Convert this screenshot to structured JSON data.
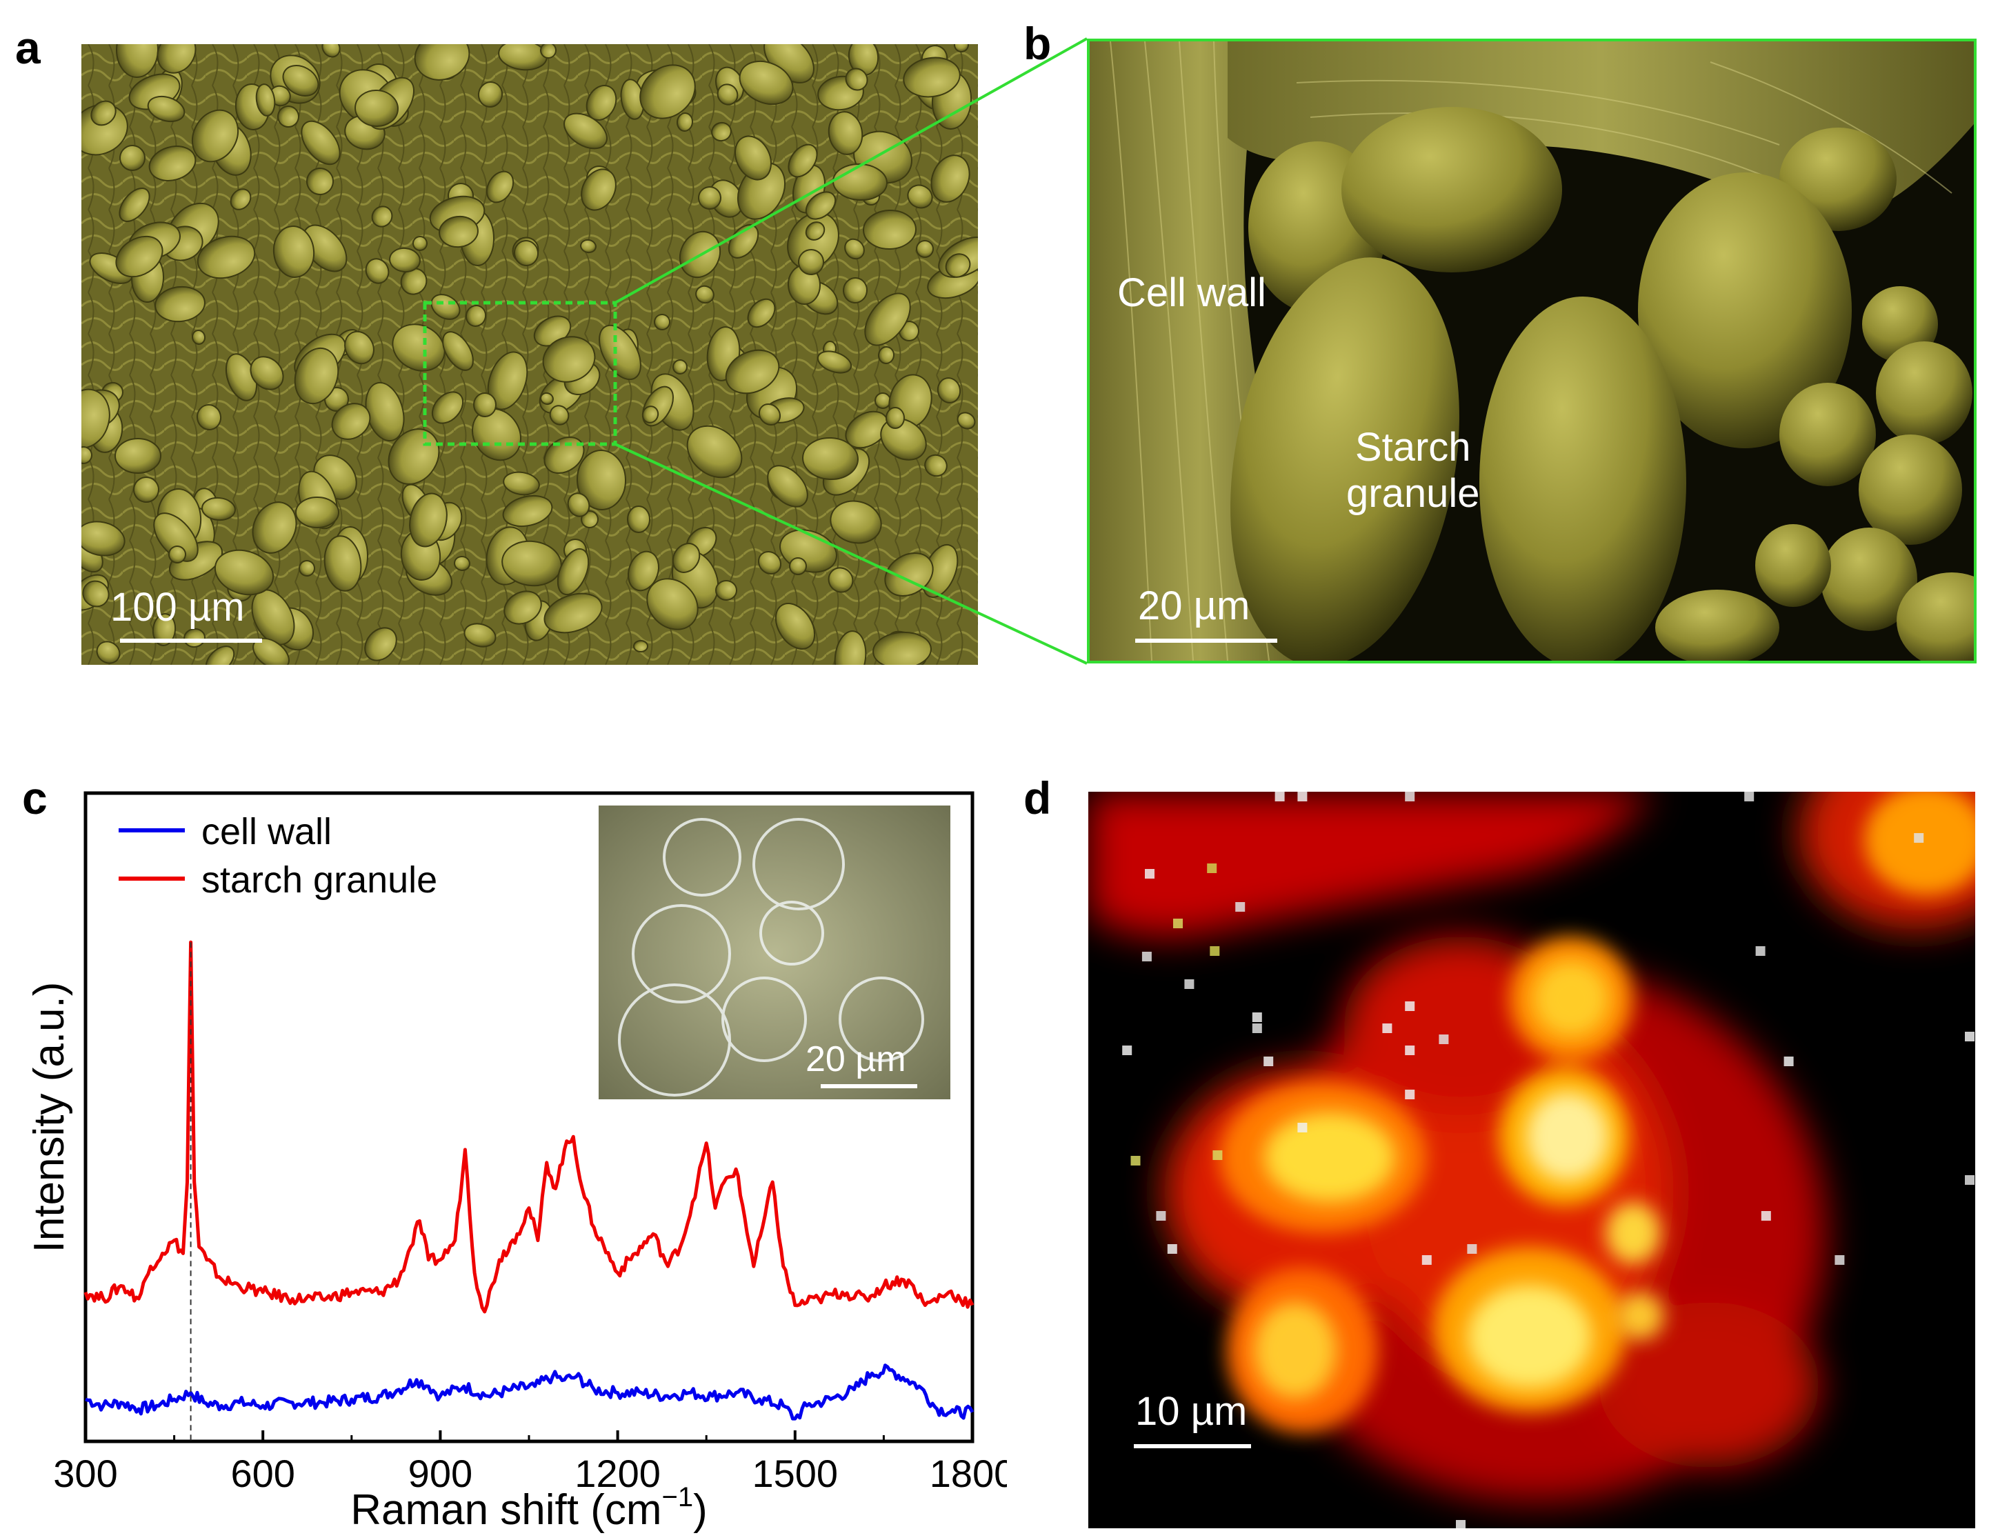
{
  "figure": {
    "panel_letters": [
      "a",
      "b",
      "c",
      "d"
    ],
    "panel_a": {
      "scale_bar_label": "100 µm",
      "description_colors": {
        "tint": "#8a8a2a",
        "zoom_box": "#33dd33"
      }
    },
    "panel_b": {
      "labels": {
        "cell_wall": "Cell wall",
        "starch_line1": "Starch",
        "starch_line2": "granule"
      },
      "scale_bar_label": "20 µm"
    },
    "panel_c": {
      "legend": [
        "cell wall",
        "starch granule"
      ],
      "inset_scale_label": "20 µm"
    },
    "panel_d": {
      "scale_bar_label": "10 µm",
      "colormap": [
        "#000000",
        "#cc0000",
        "#ff4000",
        "#ffcc00",
        "#ffffff"
      ]
    }
  },
  "chart_data": {
    "type": "line",
    "xlabel": "Raman shift (cm",
    "xlabel_sup": "−1",
    "xlabel_close": ")",
    "ylabel": "Intensity (a.u.)",
    "xlim": [
      300,
      1800
    ],
    "ylim": [
      0,
      100
    ],
    "xticks": [
      "300",
      "600",
      "900",
      "1200",
      "1500",
      "1800"
    ],
    "xtick_values": [
      300,
      600,
      900,
      1200,
      1500,
      1800
    ],
    "marker_line_x": 478,
    "series": [
      {
        "name": "cell wall",
        "color": "#0000ee",
        "x": [
          300,
          330,
          360,
          390,
          420,
          450,
          478,
          500,
          530,
          560,
          600,
          650,
          700,
          750,
          800,
          830,
          860,
          880,
          900,
          940,
          980,
          1020,
          1060,
          1090,
          1110,
          1130,
          1160,
          1200,
          1240,
          1280,
          1320,
          1360,
          1400,
          1440,
          1480,
          1500,
          1520,
          1560,
          1600,
          1630,
          1660,
          1690,
          1710,
          1740,
          1770,
          1800
        ],
        "values": [
          6.5,
          5.5,
          6.0,
          5.0,
          5.5,
          6.5,
          7.5,
          6.0,
          5.5,
          6.0,
          5.5,
          6.0,
          6.0,
          6.5,
          7.0,
          8.0,
          9.5,
          8.5,
          7.0,
          8.5,
          7.0,
          8.0,
          8.5,
          10.0,
          9.5,
          10.0,
          8.0,
          7.5,
          7.5,
          7.0,
          7.5,
          7.0,
          7.5,
          6.5,
          5.5,
          3.5,
          5.5,
          6.5,
          8.0,
          10.5,
          11.0,
          9.5,
          8.5,
          5.0,
          4.5,
          4.5
        ]
      },
      {
        "name": "starch granule",
        "color": "#ee0000",
        "x": [
          300,
          330,
          360,
          390,
          410,
          430,
          450,
          465,
          472,
          478,
          484,
          492,
          505,
          530,
          560,
          600,
          650,
          700,
          750,
          800,
          830,
          850,
          865,
          880,
          900,
          925,
          942,
          958,
          975,
          1000,
          1030,
          1050,
          1065,
          1080,
          1095,
          1110,
          1125,
          1140,
          1160,
          1200,
          1230,
          1260,
          1285,
          1310,
          1335,
          1350,
          1365,
          1380,
          1400,
          1430,
          1445,
          1462,
          1480,
          1500,
          1540,
          1580,
          1620,
          1650,
          1680,
          1700,
          1720,
          1760,
          1800
        ],
        "values": [
          23,
          22,
          24,
          22,
          27,
          29,
          31,
          29,
          40,
          77,
          40,
          30,
          28,
          25,
          24,
          23,
          22,
          22,
          23,
          23,
          25,
          30,
          34,
          28,
          28,
          31,
          45,
          26,
          20,
          28,
          32,
          36,
          31,
          43,
          39,
          45,
          47,
          39,
          33,
          26,
          29,
          32,
          27,
          31,
          40,
          46,
          36,
          40,
          42,
          27,
          33,
          40,
          27,
          21,
          22,
          23,
          22,
          24,
          25,
          24,
          21,
          23,
          21
        ]
      }
    ],
    "legend_position": "top-left",
    "inset": "optical micrograph of starch granules"
  }
}
